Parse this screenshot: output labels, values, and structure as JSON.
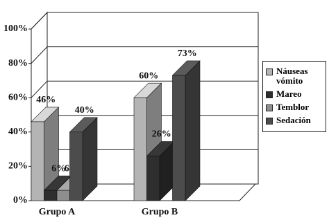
{
  "chart_data": {
    "type": "bar3d",
    "categories": [
      "Grupo A",
      "Grupo B"
    ],
    "series": [
      {
        "name": "Náuseas vómito",
        "color": "#b4b4b4",
        "values": [
          46,
          60
        ],
        "value_labels": [
          "46%",
          "60%"
        ]
      },
      {
        "name": "Mareo",
        "color": "#2e2e2e",
        "values": [
          6,
          26
        ],
        "value_labels": [
          "6%",
          "26%"
        ]
      },
      {
        "name": "Temblor",
        "color": "#8e8e8e",
        "values": [
          6,
          null
        ],
        "value_labels": [
          "6%",
          null
        ]
      },
      {
        "name": "Sedación",
        "color": "#4c4c4c",
        "values": [
          40,
          73
        ],
        "value_labels": [
          "40%",
          "73%"
        ]
      }
    ],
    "ylim": [
      0,
      100
    ],
    "yticks": [
      {
        "value": 0,
        "label": "0%"
      },
      {
        "value": 20,
        "label": "20%"
      },
      {
        "value": 40,
        "label": "40%"
      },
      {
        "value": 60,
        "label": "60%"
      },
      {
        "value": 80,
        "label": "80%"
      },
      {
        "value": 100,
        "label": "100%"
      }
    ],
    "grid": true,
    "legend": "right"
  }
}
